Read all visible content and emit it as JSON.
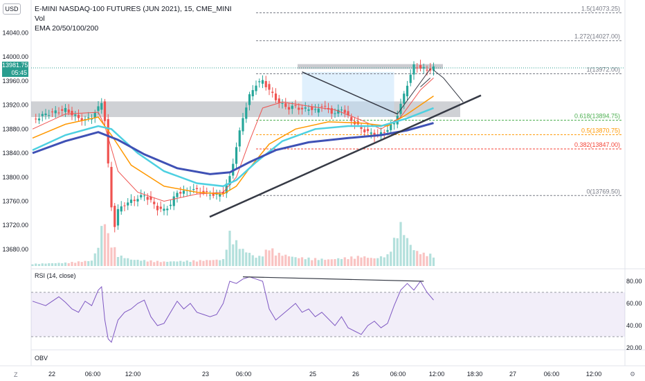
{
  "legend": {
    "symbol": "E-MINI NASDAQ-100 FUTURES (JUN 2021), 15, CME_MINI",
    "vol": "Vol",
    "ema": "EMA 20/50/100/200"
  },
  "currency": "USD",
  "last_price": {
    "value": "13981.75",
    "countdown": "05:45"
  },
  "rsi_label": "RSI (14, close)",
  "obv_label": "OBV",
  "corner_left": "Z",
  "corner_right": "⚙",
  "colors": {
    "up_candle": "#26a69a",
    "down_candle": "#ef5350",
    "ema20": "#ef5350",
    "ema50": "#ff9800",
    "ema100": "#4dd0e1",
    "ema200": "#3f51b5",
    "rsi": "#7e57c2",
    "fib_upper": "#787b86",
    "fib_618": "#4caf50",
    "fib_05": "#ff9800",
    "fib_0382": "#f44336"
  },
  "chart_data": {
    "type": "candlestick",
    "y_axis": {
      "range": [
        13650,
        14090
      ],
      "ticks": [
        "14040.00",
        "14000.00",
        "13960.00",
        "13920.00",
        "13880.00",
        "13840.00",
        "13800.00",
        "13760.00",
        "13720.00",
        "13680.00"
      ]
    },
    "x_axis": {
      "ticks": [
        "22",
        "06:00",
        "12:00",
        "23",
        "06:00",
        "25",
        "26",
        "06:00",
        "12:00",
        "18:30",
        "27",
        "06:00",
        "12:00"
      ]
    },
    "fib_levels": [
      {
        "label": "1.5(14073.25)",
        "value": 14073.25
      },
      {
        "label": "1.272(14027.00)",
        "value": 14027.0
      },
      {
        "label": "1(13972.00)",
        "value": 13972.0
      },
      {
        "label": "0.618(13894.75)",
        "value": 13894.75
      },
      {
        "label": "0.5(13870.75)",
        "value": 13870.75
      },
      {
        "label": "0.382(13847.00)",
        "value": 13847.0
      },
      {
        "label": "0(13769.50)",
        "value": 13769.5
      }
    ],
    "close_path": [
      [
        0,
        13895
      ],
      [
        4,
        13905
      ],
      [
        8,
        13910
      ],
      [
        10,
        13912
      ],
      [
        12,
        13905
      ],
      [
        14,
        13898
      ],
      [
        16,
        13895
      ],
      [
        18,
        13900
      ],
      [
        20,
        13915
      ],
      [
        21,
        13925
      ],
      [
        22,
        13895
      ],
      [
        23,
        13820
      ],
      [
        24,
        13750
      ],
      [
        25,
        13720
      ],
      [
        26,
        13745
      ],
      [
        28,
        13755
      ],
      [
        30,
        13760
      ],
      [
        32,
        13765
      ],
      [
        34,
        13770
      ],
      [
        36,
        13760
      ],
      [
        38,
        13748
      ],
      [
        40,
        13745
      ],
      [
        42,
        13755
      ],
      [
        44,
        13775
      ],
      [
        46,
        13775
      ],
      [
        48,
        13780
      ],
      [
        50,
        13778
      ],
      [
        52,
        13775
      ],
      [
        54,
        13772
      ],
      [
        56,
        13770
      ],
      [
        58,
        13775
      ],
      [
        60,
        13800
      ],
      [
        62,
        13850
      ],
      [
        64,
        13900
      ],
      [
        66,
        13935
      ],
      [
        68,
        13955
      ],
      [
        70,
        13960
      ],
      [
        72,
        13945
      ],
      [
        74,
        13930
      ],
      [
        76,
        13920
      ],
      [
        78,
        13915
      ],
      [
        80,
        13918
      ],
      [
        82,
        13912
      ],
      [
        84,
        13915
      ],
      [
        86,
        13910
      ],
      [
        88,
        13920
      ],
      [
        90,
        13912
      ],
      [
        92,
        13905
      ],
      [
        94,
        13915
      ],
      [
        96,
        13900
      ],
      [
        98,
        13890
      ],
      [
        100,
        13880
      ],
      [
        102,
        13875
      ],
      [
        104,
        13870
      ],
      [
        106,
        13872
      ],
      [
        108,
        13880
      ],
      [
        110,
        13890
      ],
      [
        112,
        13920
      ],
      [
        114,
        13955
      ],
      [
        116,
        13985
      ],
      [
        118,
        13982
      ],
      [
        120,
        13978
      ],
      [
        122,
        13981.75
      ]
    ],
    "ema20": [
      [
        0,
        13880
      ],
      [
        10,
        13905
      ],
      [
        20,
        13908
      ],
      [
        22,
        13885
      ],
      [
        26,
        13810
      ],
      [
        32,
        13775
      ],
      [
        40,
        13760
      ],
      [
        50,
        13772
      ],
      [
        58,
        13775
      ],
      [
        62,
        13800
      ],
      [
        66,
        13860
      ],
      [
        70,
        13915
      ],
      [
        76,
        13925
      ],
      [
        84,
        13918
      ],
      [
        92,
        13912
      ],
      [
        100,
        13895
      ],
      [
        106,
        13880
      ],
      [
        112,
        13900
      ],
      [
        118,
        13945
      ],
      [
        122,
        13965
      ]
    ],
    "ema50": [
      [
        0,
        13865
      ],
      [
        10,
        13888
      ],
      [
        20,
        13900
      ],
      [
        24,
        13870
      ],
      [
        30,
        13820
      ],
      [
        40,
        13785
      ],
      [
        50,
        13775
      ],
      [
        58,
        13772
      ],
      [
        62,
        13785
      ],
      [
        66,
        13815
      ],
      [
        72,
        13855
      ],
      [
        80,
        13880
      ],
      [
        90,
        13892
      ],
      [
        100,
        13890
      ],
      [
        108,
        13885
      ],
      [
        114,
        13905
      ],
      [
        122,
        13935
      ]
    ],
    "ema100": [
      [
        0,
        13845
      ],
      [
        10,
        13870
      ],
      [
        20,
        13885
      ],
      [
        24,
        13880
      ],
      [
        32,
        13840
      ],
      [
        40,
        13810
      ],
      [
        50,
        13790
      ],
      [
        58,
        13785
      ],
      [
        62,
        13795
      ],
      [
        68,
        13825
      ],
      [
        76,
        13860
      ],
      [
        86,
        13880
      ],
      [
        96,
        13885
      ],
      [
        106,
        13885
      ],
      [
        114,
        13898
      ],
      [
        122,
        13915
      ]
    ],
    "ema200": [
      [
        0,
        13840
      ],
      [
        10,
        13860
      ],
      [
        20,
        13875
      ],
      [
        26,
        13862
      ],
      [
        34,
        13838
      ],
      [
        44,
        13815
      ],
      [
        54,
        13805
      ],
      [
        60,
        13808
      ],
      [
        66,
        13825
      ],
      [
        74,
        13845
      ],
      [
        84,
        13858
      ],
      [
        96,
        13865
      ],
      [
        106,
        13870
      ],
      [
        114,
        13878
      ],
      [
        122,
        13890
      ]
    ],
    "volume": [
      [
        0,
        2
      ],
      [
        10,
        3
      ],
      [
        18,
        5
      ],
      [
        20,
        18
      ],
      [
        21,
        35
      ],
      [
        22,
        45
      ],
      [
        23,
        28
      ],
      [
        24,
        22
      ],
      [
        26,
        10
      ],
      [
        30,
        6
      ],
      [
        40,
        4
      ],
      [
        50,
        5
      ],
      [
        58,
        6
      ],
      [
        60,
        30
      ],
      [
        62,
        22
      ],
      [
        64,
        15
      ],
      [
        66,
        12
      ],
      [
        68,
        8
      ],
      [
        70,
        10
      ],
      [
        72,
        18
      ],
      [
        74,
        12
      ],
      [
        80,
        8
      ],
      [
        90,
        6
      ],
      [
        100,
        9
      ],
      [
        104,
        7
      ],
      [
        108,
        10
      ],
      [
        112,
        38
      ],
      [
        114,
        25
      ],
      [
        116,
        15
      ],
      [
        118,
        12
      ],
      [
        122,
        10
      ]
    ],
    "rsi": {
      "range": [
        20,
        90
      ],
      "ticks": [
        "80.00",
        "60.00",
        "40.00",
        "20.00"
      ],
      "band": [
        30,
        70
      ],
      "values": [
        [
          0,
          62
        ],
        [
          4,
          58
        ],
        [
          8,
          66
        ],
        [
          10,
          61
        ],
        [
          12,
          55
        ],
        [
          14,
          52
        ],
        [
          16,
          62
        ],
        [
          18,
          58
        ],
        [
          20,
          72
        ],
        [
          21,
          75
        ],
        [
          22,
          45
        ],
        [
          23,
          28
        ],
        [
          24,
          25
        ],
        [
          26,
          45
        ],
        [
          28,
          52
        ],
        [
          30,
          55
        ],
        [
          32,
          60
        ],
        [
          34,
          63
        ],
        [
          36,
          48
        ],
        [
          38,
          40
        ],
        [
          40,
          42
        ],
        [
          42,
          52
        ],
        [
          44,
          62
        ],
        [
          46,
          55
        ],
        [
          48,
          60
        ],
        [
          50,
          52
        ],
        [
          52,
          50
        ],
        [
          54,
          48
        ],
        [
          56,
          50
        ],
        [
          58,
          60
        ],
        [
          60,
          80
        ],
        [
          62,
          78
        ],
        [
          64,
          82
        ],
        [
          66,
          84
        ],
        [
          68,
          82
        ],
        [
          70,
          80
        ],
        [
          72,
          55
        ],
        [
          74,
          45
        ],
        [
          76,
          50
        ],
        [
          78,
          55
        ],
        [
          80,
          60
        ],
        [
          82,
          52
        ],
        [
          84,
          55
        ],
        [
          86,
          48
        ],
        [
          88,
          52
        ],
        [
          90,
          46
        ],
        [
          92,
          40
        ],
        [
          94,
          48
        ],
        [
          96,
          38
        ],
        [
          98,
          35
        ],
        [
          100,
          32
        ],
        [
          102,
          40
        ],
        [
          104,
          44
        ],
        [
          106,
          38
        ],
        [
          108,
          42
        ],
        [
          110,
          58
        ],
        [
          112,
          72
        ],
        [
          114,
          78
        ],
        [
          116,
          72
        ],
        [
          118,
          80
        ],
        [
          120,
          70
        ],
        [
          122,
          63
        ]
      ]
    }
  }
}
